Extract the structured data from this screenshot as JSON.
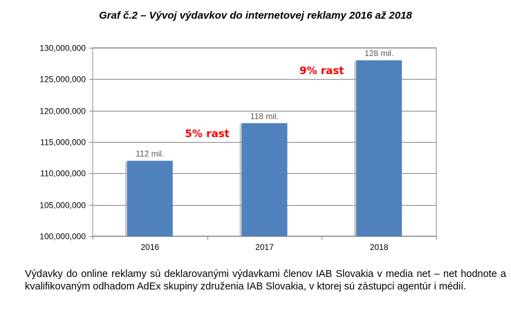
{
  "title": "Graf č.2 – Vývoj výdavkov do internetovej reklamy 2016 až 2018",
  "caption": "Výdavky do online reklamy sú deklarovanými výdavkami členov IAB Slovakia v media net – net hodnote a kvalifikovaným odhadom AdEx skupiny združenia IAB Slovakia, v ktorej sú zástupci agentúr i médií.",
  "chart_data": {
    "type": "bar",
    "categories": [
      "2016",
      "2017",
      "2018"
    ],
    "values": [
      112000000,
      118000000,
      128000000
    ],
    "data_labels": [
      "112 mil.",
      "118 mil.",
      "128 mil."
    ],
    "ylim": [
      100000000,
      130000000
    ],
    "yticks": [
      100000000,
      105000000,
      110000000,
      115000000,
      120000000,
      125000000,
      130000000
    ],
    "ytick_labels": [
      "100,000,000",
      "105,000,000",
      "110,000,000",
      "115,000,000",
      "120,000,000",
      "125,000,000",
      "130,000,000"
    ],
    "grid": true,
    "bar_color": "#4F81BD",
    "annotations": [
      {
        "text": "5% rast",
        "between": [
          "2016",
          "2017"
        ],
        "color": "#FF0000"
      },
      {
        "text": "9% rast",
        "between": [
          "2017",
          "2018"
        ],
        "color": "#FF0000"
      }
    ]
  }
}
